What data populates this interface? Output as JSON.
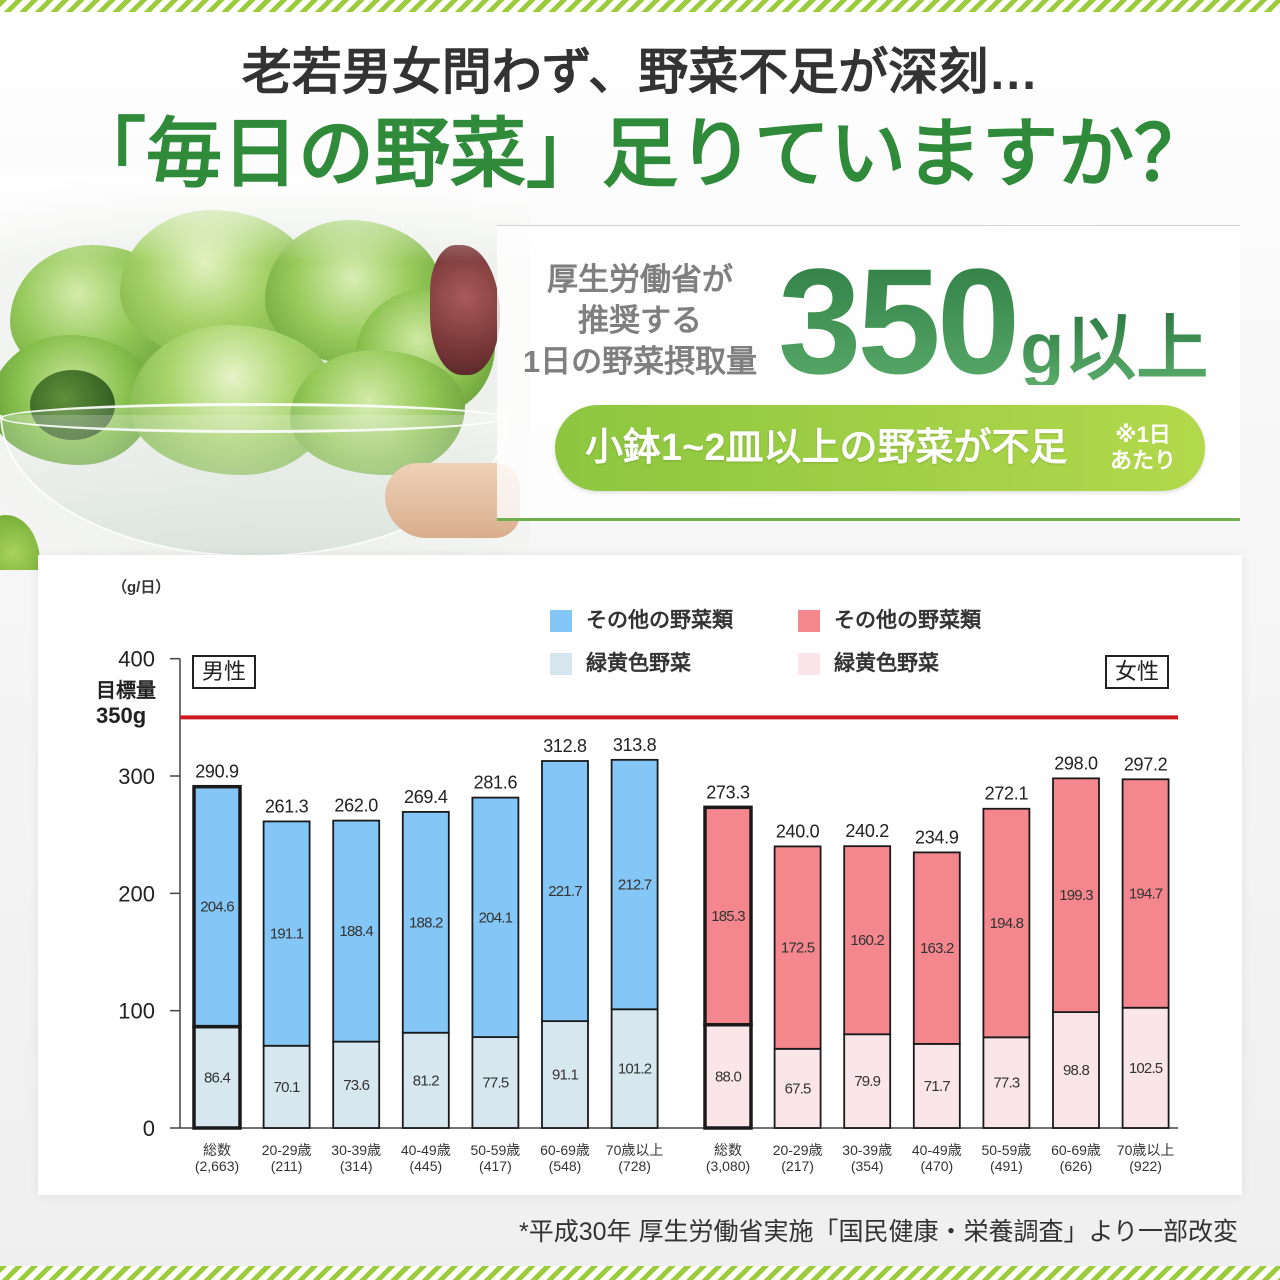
{
  "header": {
    "subtitle": "老若男女問わず、野菜不足が深刻…",
    "title": "「毎日の野菜」足りていますか？"
  },
  "recommendation": {
    "caption_lines": [
      "厚生労働省が",
      "推奨する",
      "1日の野菜摂取量"
    ],
    "amount_value": "350",
    "amount_suffix": "g以上",
    "shortfall_text": "小鉢1~2皿以上の野菜が不足",
    "shortfall_note": [
      "※1日",
      "あたり"
    ]
  },
  "colors": {
    "title_green": "#2f8a3a",
    "amount_green": "#2e7c44",
    "amount_green_light": "#5aac6a",
    "pill_start": "#8cc63f",
    "pill_end": "#b3d84c",
    "target_line": "#cc1a1f",
    "stripe": "#9ccb3b"
  },
  "chart_data": {
    "type": "bar",
    "stacked": true,
    "unit_label": "（g/日）",
    "ylim": [
      0,
      400
    ],
    "yticks": [
      0,
      100,
      200,
      300,
      400
    ],
    "target": {
      "value": 350,
      "label_lines": [
        "目標量",
        "350g"
      ]
    },
    "groups": [
      {
        "name": "男性",
        "categories": [
          "総数",
          "20-29歳",
          "30-39歳",
          "40-49歳",
          "50-59歳",
          "60-69歳",
          "70歳以上"
        ],
        "sample_sizes": [
          "(2,663)",
          "(211)",
          "(314)",
          "(445)",
          "(417)",
          "(548)",
          "(728)"
        ],
        "series": [
          {
            "name": "緑黄色野菜",
            "color": "#d6e7ef",
            "values": [
              86.4,
              70.1,
              73.6,
              81.2,
              77.5,
              91.1,
              101.2
            ]
          },
          {
            "name": "その他の野菜類",
            "color": "#84c6f6",
            "values": [
              204.6,
              191.1,
              188.4,
              188.2,
              204.1,
              221.7,
              212.7
            ]
          }
        ],
        "totals": [
          290.9,
          261.3,
          262.0,
          269.4,
          281.6,
          312.8,
          313.8
        ]
      },
      {
        "name": "女性",
        "categories": [
          "総数",
          "20-29歳",
          "30-39歳",
          "40-49歳",
          "50-59歳",
          "60-69歳",
          "70歳以上"
        ],
        "sample_sizes": [
          "(3,080)",
          "(217)",
          "(354)",
          "(470)",
          "(491)",
          "(626)",
          "(922)"
        ],
        "series": [
          {
            "name": "緑黄色野菜",
            "color": "#fae6e8",
            "values": [
              88.0,
              67.5,
              79.9,
              71.7,
              77.3,
              98.8,
              102.5
            ]
          },
          {
            "name": "その他の野菜類",
            "color": "#f3878d",
            "values": [
              185.3,
              172.5,
              160.2,
              163.2,
              194.8,
              199.3,
              194.7
            ]
          }
        ],
        "totals": [
          273.3,
          240.0,
          240.2,
          234.9,
          272.1,
          298.0,
          297.2
        ]
      }
    ]
  },
  "footnote": "*平成30年 厚生労働省実施「国民健康・栄養調査」より一部改変"
}
